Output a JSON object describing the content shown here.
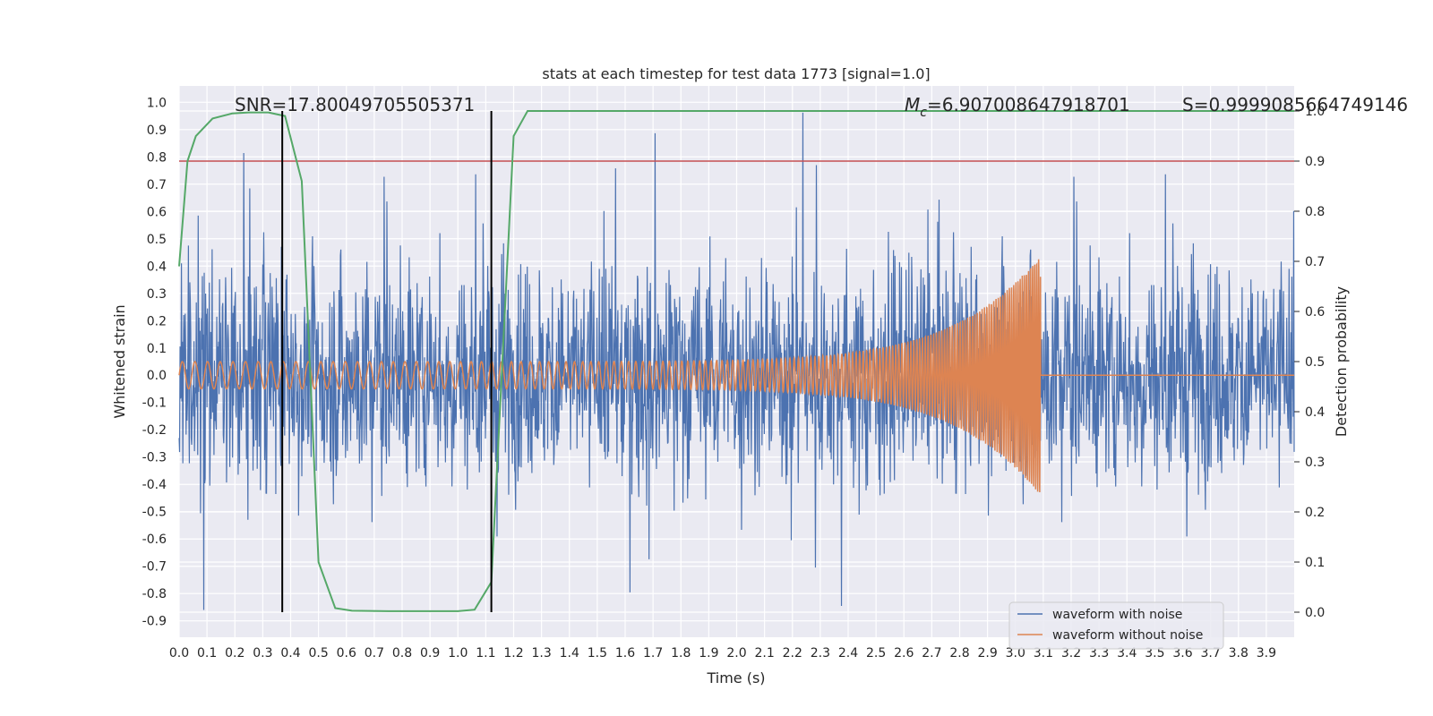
{
  "chart_data": {
    "type": "line",
    "title": "stats at each timestep for test data 1773 [signal=1.0]",
    "xlabel": "Time (s)",
    "ylabel": "Whitened strain",
    "y2label": "Detection probability",
    "xlim": [
      0,
      4
    ],
    "ylim": [
      -0.96,
      1.06
    ],
    "y2lim": [
      -0.05,
      1.05
    ],
    "x_ticks": [
      "0.0",
      "0.1",
      "0.2",
      "0.3",
      "0.4",
      "0.5",
      "0.6",
      "0.7",
      "0.8",
      "0.9",
      "1.0",
      "1.1",
      "1.2",
      "1.3",
      "1.4",
      "1.5",
      "1.6",
      "1.7",
      "1.8",
      "1.9",
      "2.0",
      "2.1",
      "2.2",
      "2.3",
      "2.4",
      "2.5",
      "2.6",
      "2.7",
      "2.8",
      "2.9",
      "3.0",
      "3.1",
      "3.2",
      "3.3",
      "3.4",
      "3.5",
      "3.6",
      "3.7",
      "3.8",
      "3.9"
    ],
    "y_ticks": [
      "1.0",
      "0.9",
      "0.8",
      "0.7",
      "0.6",
      "0.5",
      "0.4",
      "0.3",
      "0.2",
      "0.1",
      "0.0",
      "-0.1",
      "-0.2",
      "-0.3",
      "-0.4",
      "-0.5",
      "-0.6",
      "-0.7",
      "-0.8",
      "-0.9"
    ],
    "y2_ticks": [
      "1.0",
      "0.9",
      "0.8",
      "0.7",
      "0.6",
      "0.5",
      "0.4",
      "0.3",
      "0.2",
      "0.1",
      "0.0"
    ],
    "annotations": {
      "snr": "SNR=17.80049705505371",
      "mc_symbol": "M",
      "mc_subscript": "c",
      "mc_value": "=6.907008647918701",
      "s": "S=0.9999085664749146"
    },
    "noise_series": {
      "name": "waveform with noise",
      "color": "#4c72b0",
      "description": "whitened strain with noise, roughly between -0.86 and 1.0",
      "sample_rate_points": 2400,
      "seed": 1773
    },
    "signal_series": {
      "name": "waveform without noise",
      "color": "#dd8452",
      "start_amplitude": 0.05,
      "peak_amplitude": 0.44,
      "merger_time": 3.09,
      "start_frequency": 22,
      "end_frequency": 140
    },
    "detection_probability": {
      "color": "#55a868",
      "x": [
        0.0,
        0.03,
        0.06,
        0.12,
        0.19,
        0.25,
        0.32,
        0.38,
        0.44,
        0.5,
        0.56,
        0.62,
        0.75,
        1.0,
        1.06,
        1.12,
        1.2,
        1.25,
        2.0,
        3.0,
        4.0
      ],
      "y": [
        0.69,
        0.9,
        0.95,
        0.985,
        0.995,
        0.997,
        0.997,
        0.99,
        0.86,
        0.1,
        0.008,
        0.003,
        0.002,
        0.002,
        0.005,
        0.06,
        0.95,
        1.0,
        1.0,
        1.0,
        1.0
      ]
    },
    "threshold": {
      "value": 0.9,
      "axis": "y2",
      "color": "#c44e52"
    },
    "vertical_markers": [
      0.37,
      1.12
    ],
    "legend": {
      "position": "lower-right",
      "entries": [
        {
          "label": "waveform with noise",
          "color": "#4c72b0"
        },
        {
          "label": "waveform without noise",
          "color": "#dd8452"
        }
      ]
    },
    "grid": true
  }
}
